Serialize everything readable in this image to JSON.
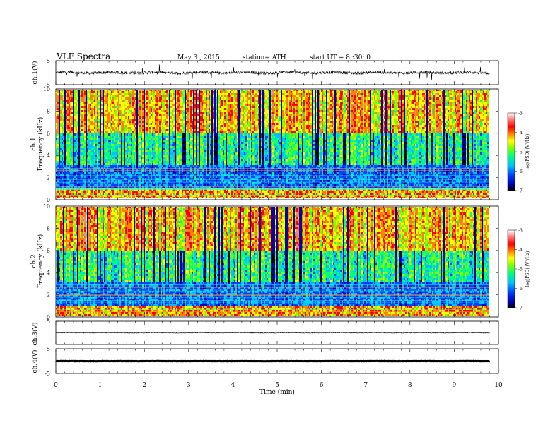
{
  "header": {
    "title": "VLF Spectra",
    "date": "May 3 , 2015",
    "station": "station= ATH",
    "start": "start UT = 8 :30: 0"
  },
  "chart_data": [
    {
      "type": "line",
      "name": "ch1-waveform",
      "ylabel": "ch.1(V)",
      "ylim": [
        -5,
        5
      ],
      "yticks": [
        "5",
        "-5"
      ],
      "xlim": [
        0,
        10
      ],
      "x_end": 9.8,
      "description_values": {
        "baseline": 0,
        "noise_amplitude": 0.6,
        "spike_amplitude": 1.5
      }
    },
    {
      "type": "heatmap",
      "name": "ch1-spectrogram",
      "ylabel": "ch.1 Frequency (kHz)",
      "ylim": [
        0,
        10
      ],
      "yticks": [
        "0",
        "2",
        "4",
        "6",
        "8",
        "10"
      ],
      "xlim": [
        0,
        10
      ],
      "x_end": 9.8,
      "colorbar": {
        "label": "log(PSD) (V²/Hz)",
        "range": [
          -7,
          -3
        ],
        "ticks": [
          "-3",
          "-4",
          "-5",
          "-6",
          "-7"
        ],
        "colors": [
          "#000000",
          "#0000b0",
          "#0040ff",
          "#00c0ff",
          "#00ff80",
          "#80ff00",
          "#ffff00",
          "#ff8000",
          "#ff0000",
          "#ff8080",
          "#ffffff"
        ]
      }
    },
    {
      "type": "heatmap",
      "name": "ch2-spectrogram",
      "ylabel": "ch.2 Frequency (kHz)",
      "ylim": [
        0,
        10
      ],
      "yticks": [
        "0",
        "2",
        "4",
        "6",
        "8",
        "10"
      ],
      "xlim": [
        0,
        10
      ],
      "x_end": 9.8,
      "colorbar": {
        "label": "log(PSD) (V²/Hz)",
        "range": [
          -7,
          -3
        ],
        "ticks": [
          "-3",
          "-4",
          "-5",
          "-6",
          "-7"
        ]
      }
    },
    {
      "type": "line",
      "name": "ch3-waveform",
      "ylabel": "ch.3(V)",
      "ylim": [
        -5,
        5
      ],
      "yticks": [
        "5"
      ],
      "xlim": [
        0,
        10
      ],
      "x_end": 9.8,
      "description_values": {
        "baseline": 0,
        "noise_amplitude": 0.2
      }
    },
    {
      "type": "line",
      "name": "ch4-waveform",
      "ylabel": "ch.4(V)",
      "ylim": [
        -5,
        5
      ],
      "yticks": [
        "5",
        "-5"
      ],
      "xlim": [
        0,
        10
      ],
      "x_end": 9.8,
      "description_values": {
        "baseline": 0,
        "noise_amplitude": 0.05
      }
    }
  ],
  "xaxis": {
    "label": "Time (min)",
    "ticks": [
      "0",
      "1",
      "2",
      "3",
      "4",
      "5",
      "6",
      "7",
      "8",
      "9",
      "10"
    ],
    "range": [
      0,
      10
    ]
  }
}
